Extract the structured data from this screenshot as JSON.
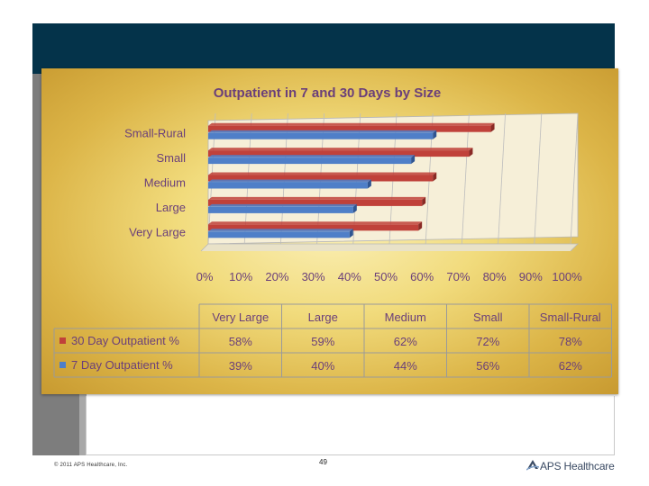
{
  "slide": {
    "copyright": "© 2011 APS Healthcare, Inc.",
    "page_number": "49",
    "logo_text": "APS Healthcare",
    "colors": {
      "topbar": "#04334a",
      "leftbar": "#7d7d7d"
    }
  },
  "chart_data": {
    "type": "bar",
    "orientation": "horizontal",
    "title": "Outpatient in 7 and 30 Days by Size",
    "categories": [
      "Very Large",
      "Large",
      "Medium",
      "Small",
      "Small-Rural"
    ],
    "series": [
      {
        "name": "30 Day Outpatient %",
        "color": "#c0413a",
        "values": [
          58,
          59,
          62,
          72,
          78
        ],
        "labels": [
          "58%",
          "59%",
          "62%",
          "72%",
          "78%"
        ]
      },
      {
        "name": "7 Day Outpatient %",
        "color": "#4f7fc8",
        "values": [
          39,
          40,
          44,
          56,
          62
        ],
        "labels": [
          "39%",
          "40%",
          "44%",
          "56%",
          "62%"
        ]
      }
    ],
    "xlim": [
      0,
      100
    ],
    "x_ticks": [
      "0%",
      "10%",
      "20%",
      "30%",
      "40%",
      "50%",
      "60%",
      "70%",
      "80%",
      "90%",
      "100%"
    ],
    "grid": true,
    "legend": "data-table-below"
  }
}
